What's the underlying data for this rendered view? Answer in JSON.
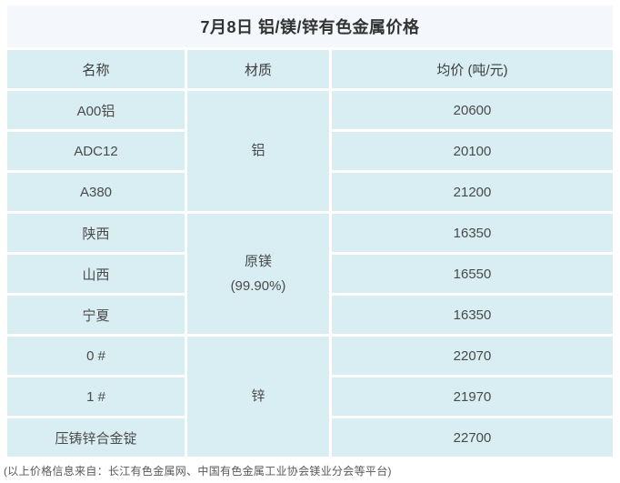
{
  "title": "7月8日 铝/镁/锌有色金属价格",
  "columns": [
    "名称",
    "材质",
    "均价 (吨/元)"
  ],
  "groups": [
    {
      "material": "铝",
      "material_note": "",
      "rows": [
        {
          "name": "A00铝",
          "price": "20600"
        },
        {
          "name": "ADC12",
          "price": "20100"
        },
        {
          "name": "A380",
          "price": "21200"
        }
      ]
    },
    {
      "material": "原镁",
      "material_note": "(99.90%)",
      "rows": [
        {
          "name": "陕西",
          "price": "16350"
        },
        {
          "name": "山西",
          "price": "16550"
        },
        {
          "name": "宁夏",
          "price": "16350"
        }
      ]
    },
    {
      "material": "锌",
      "material_note": "",
      "rows": [
        {
          "name": "0 #",
          "price": "22070"
        },
        {
          "name": "1 #",
          "price": "21970"
        },
        {
          "name": "压铸锌合金锭",
          "price": "22700"
        }
      ]
    }
  ],
  "footer": "(以上价格信息来自：长江有色金属网、中国有色金属工业协会镁业分会等平台)",
  "colors": {
    "title_bg": "#f4f7fb",
    "cell_bg": "#d9eef2",
    "title_text": "#333333",
    "cell_text": "#4a4a4a",
    "footer_text": "#595959"
  },
  "chart_data": {
    "type": "table",
    "title": "7月8日 铝/镁/锌有色金属价格",
    "columns": [
      "名称",
      "材质",
      "均价 (吨/元)"
    ],
    "rows": [
      [
        "A00铝",
        "铝",
        20600
      ],
      [
        "ADC12",
        "铝",
        20100
      ],
      [
        "A380",
        "铝",
        21200
      ],
      [
        "陕西",
        "原镁 (99.90%)",
        16350
      ],
      [
        "山西",
        "原镁 (99.90%)",
        16550
      ],
      [
        "宁夏",
        "原镁 (99.90%)",
        16350
      ],
      [
        "0 #",
        "锌",
        22070
      ],
      [
        "1 #",
        "锌",
        21970
      ],
      [
        "压铸锌合金锭",
        "锌",
        22700
      ]
    ],
    "merged_material_groups": [
      {
        "material": "铝",
        "row_span": 3
      },
      {
        "material": "原镁 (99.90%)",
        "row_span": 3
      },
      {
        "material": "锌",
        "row_span": 3
      }
    ],
    "note": "(以上价格信息来自：长江有色金属网、中国有色金属工业协会镁业分会等平台)"
  }
}
